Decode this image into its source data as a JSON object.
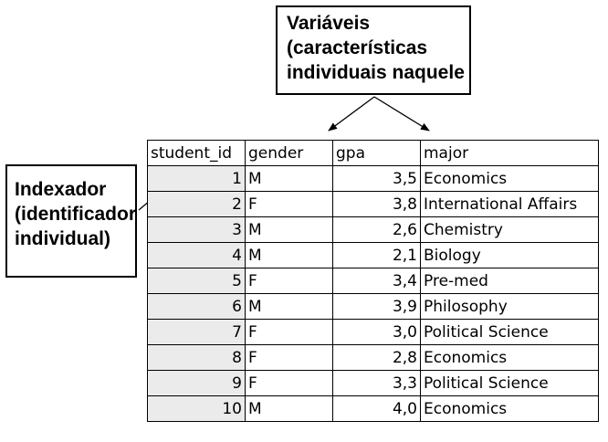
{
  "callouts": {
    "variables": {
      "lines": [
        "Variáveis",
        "(características",
        "individuais naquele"
      ]
    },
    "indexer": {
      "lines": [
        "Indexador",
        "(identificador",
        "individual)"
      ]
    }
  },
  "table": {
    "columns": [
      "student_id",
      "gender",
      "gpa",
      "major"
    ],
    "rows": [
      {
        "student_id": "1",
        "gender": "M",
        "gpa": "3,5",
        "major": "Economics"
      },
      {
        "student_id": "2",
        "gender": "F",
        "gpa": "3,8",
        "major": "International Affairs"
      },
      {
        "student_id": "3",
        "gender": "M",
        "gpa": "2,6",
        "major": "Chemistry"
      },
      {
        "student_id": "4",
        "gender": "M",
        "gpa": "2,1",
        "major": "Biology"
      },
      {
        "student_id": "5",
        "gender": "F",
        "gpa": "3,4",
        "major": "Pre-med"
      },
      {
        "student_id": "6",
        "gender": "M",
        "gpa": "3,9",
        "major": "Philosophy"
      },
      {
        "student_id": "7",
        "gender": "F",
        "gpa": "3,0",
        "major": "Political Science"
      },
      {
        "student_id": "8",
        "gender": "F",
        "gpa": "2,8",
        "major": "Economics"
      },
      {
        "student_id": "9",
        "gender": "F",
        "gpa": "3,3",
        "major": "Political Science"
      },
      {
        "student_id": "10",
        "gender": "M",
        "gpa": "4,0",
        "major": "Economics"
      }
    ]
  },
  "colors": {
    "id_column_background": "#ebebeb",
    "border": "#000000"
  }
}
